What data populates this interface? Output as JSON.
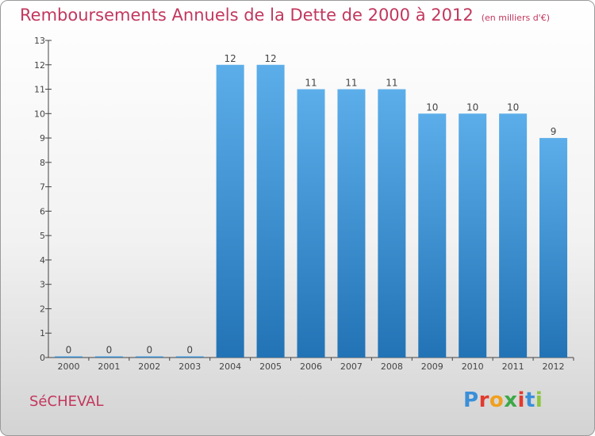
{
  "header": {
    "title": "Remboursements Annuels de la Dette de 2000 à 2012",
    "unit": "(en milliers d'€)"
  },
  "footer": {
    "commune": "SéCHEVAL",
    "logo_letters": [
      "P",
      "r",
      "o",
      "x",
      "i",
      "t",
      "i"
    ],
    "logo_colors": [
      "#3a8fd9",
      "#e23a2e",
      "#f0a01e",
      "#3da847",
      "#e23a2e",
      "#3a8fd9",
      "#8cc63f"
    ]
  },
  "colors": {
    "bar_top": "#5caeea",
    "bar_bottom": "#2273b5",
    "axis": "#444444",
    "title": "#c2375e"
  },
  "chart_data": {
    "type": "bar",
    "title": "Remboursements Annuels de la Dette de 2000 à 2012",
    "categories": [
      "2000",
      "2001",
      "2002",
      "2003",
      "2004",
      "2005",
      "2006",
      "2007",
      "2008",
      "2009",
      "2010",
      "2011",
      "2012"
    ],
    "values": [
      0,
      0,
      0,
      0,
      12,
      12,
      11,
      11,
      11,
      10,
      10,
      10,
      9
    ],
    "data_labels": [
      "0",
      "0",
      "0",
      "0",
      "12",
      "12",
      "11",
      "11",
      "11",
      "10",
      "10",
      "10",
      "9"
    ],
    "yticks": [
      0,
      1,
      2,
      3,
      4,
      5,
      6,
      7,
      8,
      9,
      10,
      11,
      12,
      13
    ],
    "ylim": [
      0,
      13
    ],
    "xlabel": "",
    "ylabel": "",
    "grid": false
  }
}
